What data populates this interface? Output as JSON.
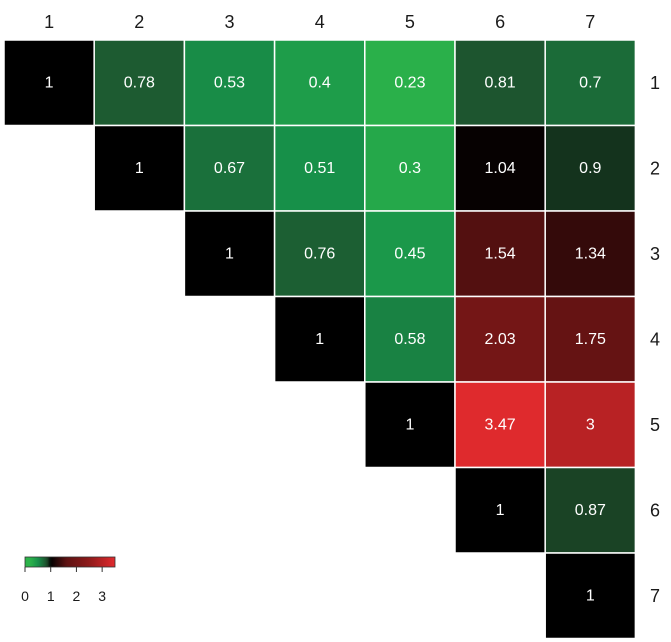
{
  "chart_data": {
    "type": "heatmap",
    "layout": "upper-triangle",
    "x_labels": [
      "1",
      "2",
      "3",
      "4",
      "5",
      "6",
      "7"
    ],
    "y_labels": [
      "1",
      "2",
      "3",
      "4",
      "5",
      "6",
      "7"
    ],
    "x_axis_position": "top",
    "y_axis_position": "right",
    "grid": false,
    "cell_border_color": "#ffffff",
    "values": [
      [
        1,
        0.78,
        0.53,
        0.4,
        0.23,
        0.81,
        0.7
      ],
      [
        null,
        1,
        0.67,
        0.51,
        0.3,
        1.04,
        0.9
      ],
      [
        null,
        null,
        1,
        0.76,
        0.45,
        1.54,
        1.34
      ],
      [
        null,
        null,
        null,
        1,
        0.58,
        2.03,
        1.75
      ],
      [
        null,
        null,
        null,
        null,
        1,
        3.47,
        3
      ],
      [
        null,
        null,
        null,
        null,
        null,
        1,
        0.87
      ],
      [
        null,
        null,
        null,
        null,
        null,
        null,
        1
      ]
    ],
    "value_labels": [
      [
        "1",
        "0.78",
        "0.53",
        "0.4",
        "0.23",
        "0.81",
        "0.7"
      ],
      [
        "",
        "1",
        "0.67",
        "0.51",
        "0.3",
        "1.04",
        "0.9"
      ],
      [
        "",
        "",
        "1",
        "0.76",
        "0.45",
        "1.54",
        "1.34"
      ],
      [
        "",
        "",
        "",
        "1",
        "0.58",
        "2.03",
        "1.75"
      ],
      [
        "",
        "",
        "",
        "",
        "1",
        "3.47",
        "3"
      ],
      [
        "",
        "",
        "",
        "",
        "",
        "1",
        "0.87"
      ],
      [
        "",
        "",
        "",
        "",
        "",
        "",
        "1"
      ]
    ],
    "color_scale": {
      "min": 0,
      "max": 3.5,
      "stops": [
        {
          "value": 0.2,
          "color": "#2cb34a"
        },
        {
          "value": 0.5,
          "color": "#17924a"
        },
        {
          "value": 0.85,
          "color": "#1e4d2b"
        },
        {
          "value": 1.0,
          "color": "#000000"
        },
        {
          "value": 1.6,
          "color": "#5c1212"
        },
        {
          "value": 2.5,
          "color": "#8f1a1a"
        },
        {
          "value": 3.5,
          "color": "#e12a2e"
        }
      ]
    },
    "legend": {
      "position": "bottom-left",
      "range": [
        0,
        3.5
      ],
      "ticks": [
        0,
        1,
        2,
        3
      ],
      "tick_labels": [
        "0",
        "1",
        "2",
        "3"
      ]
    }
  }
}
